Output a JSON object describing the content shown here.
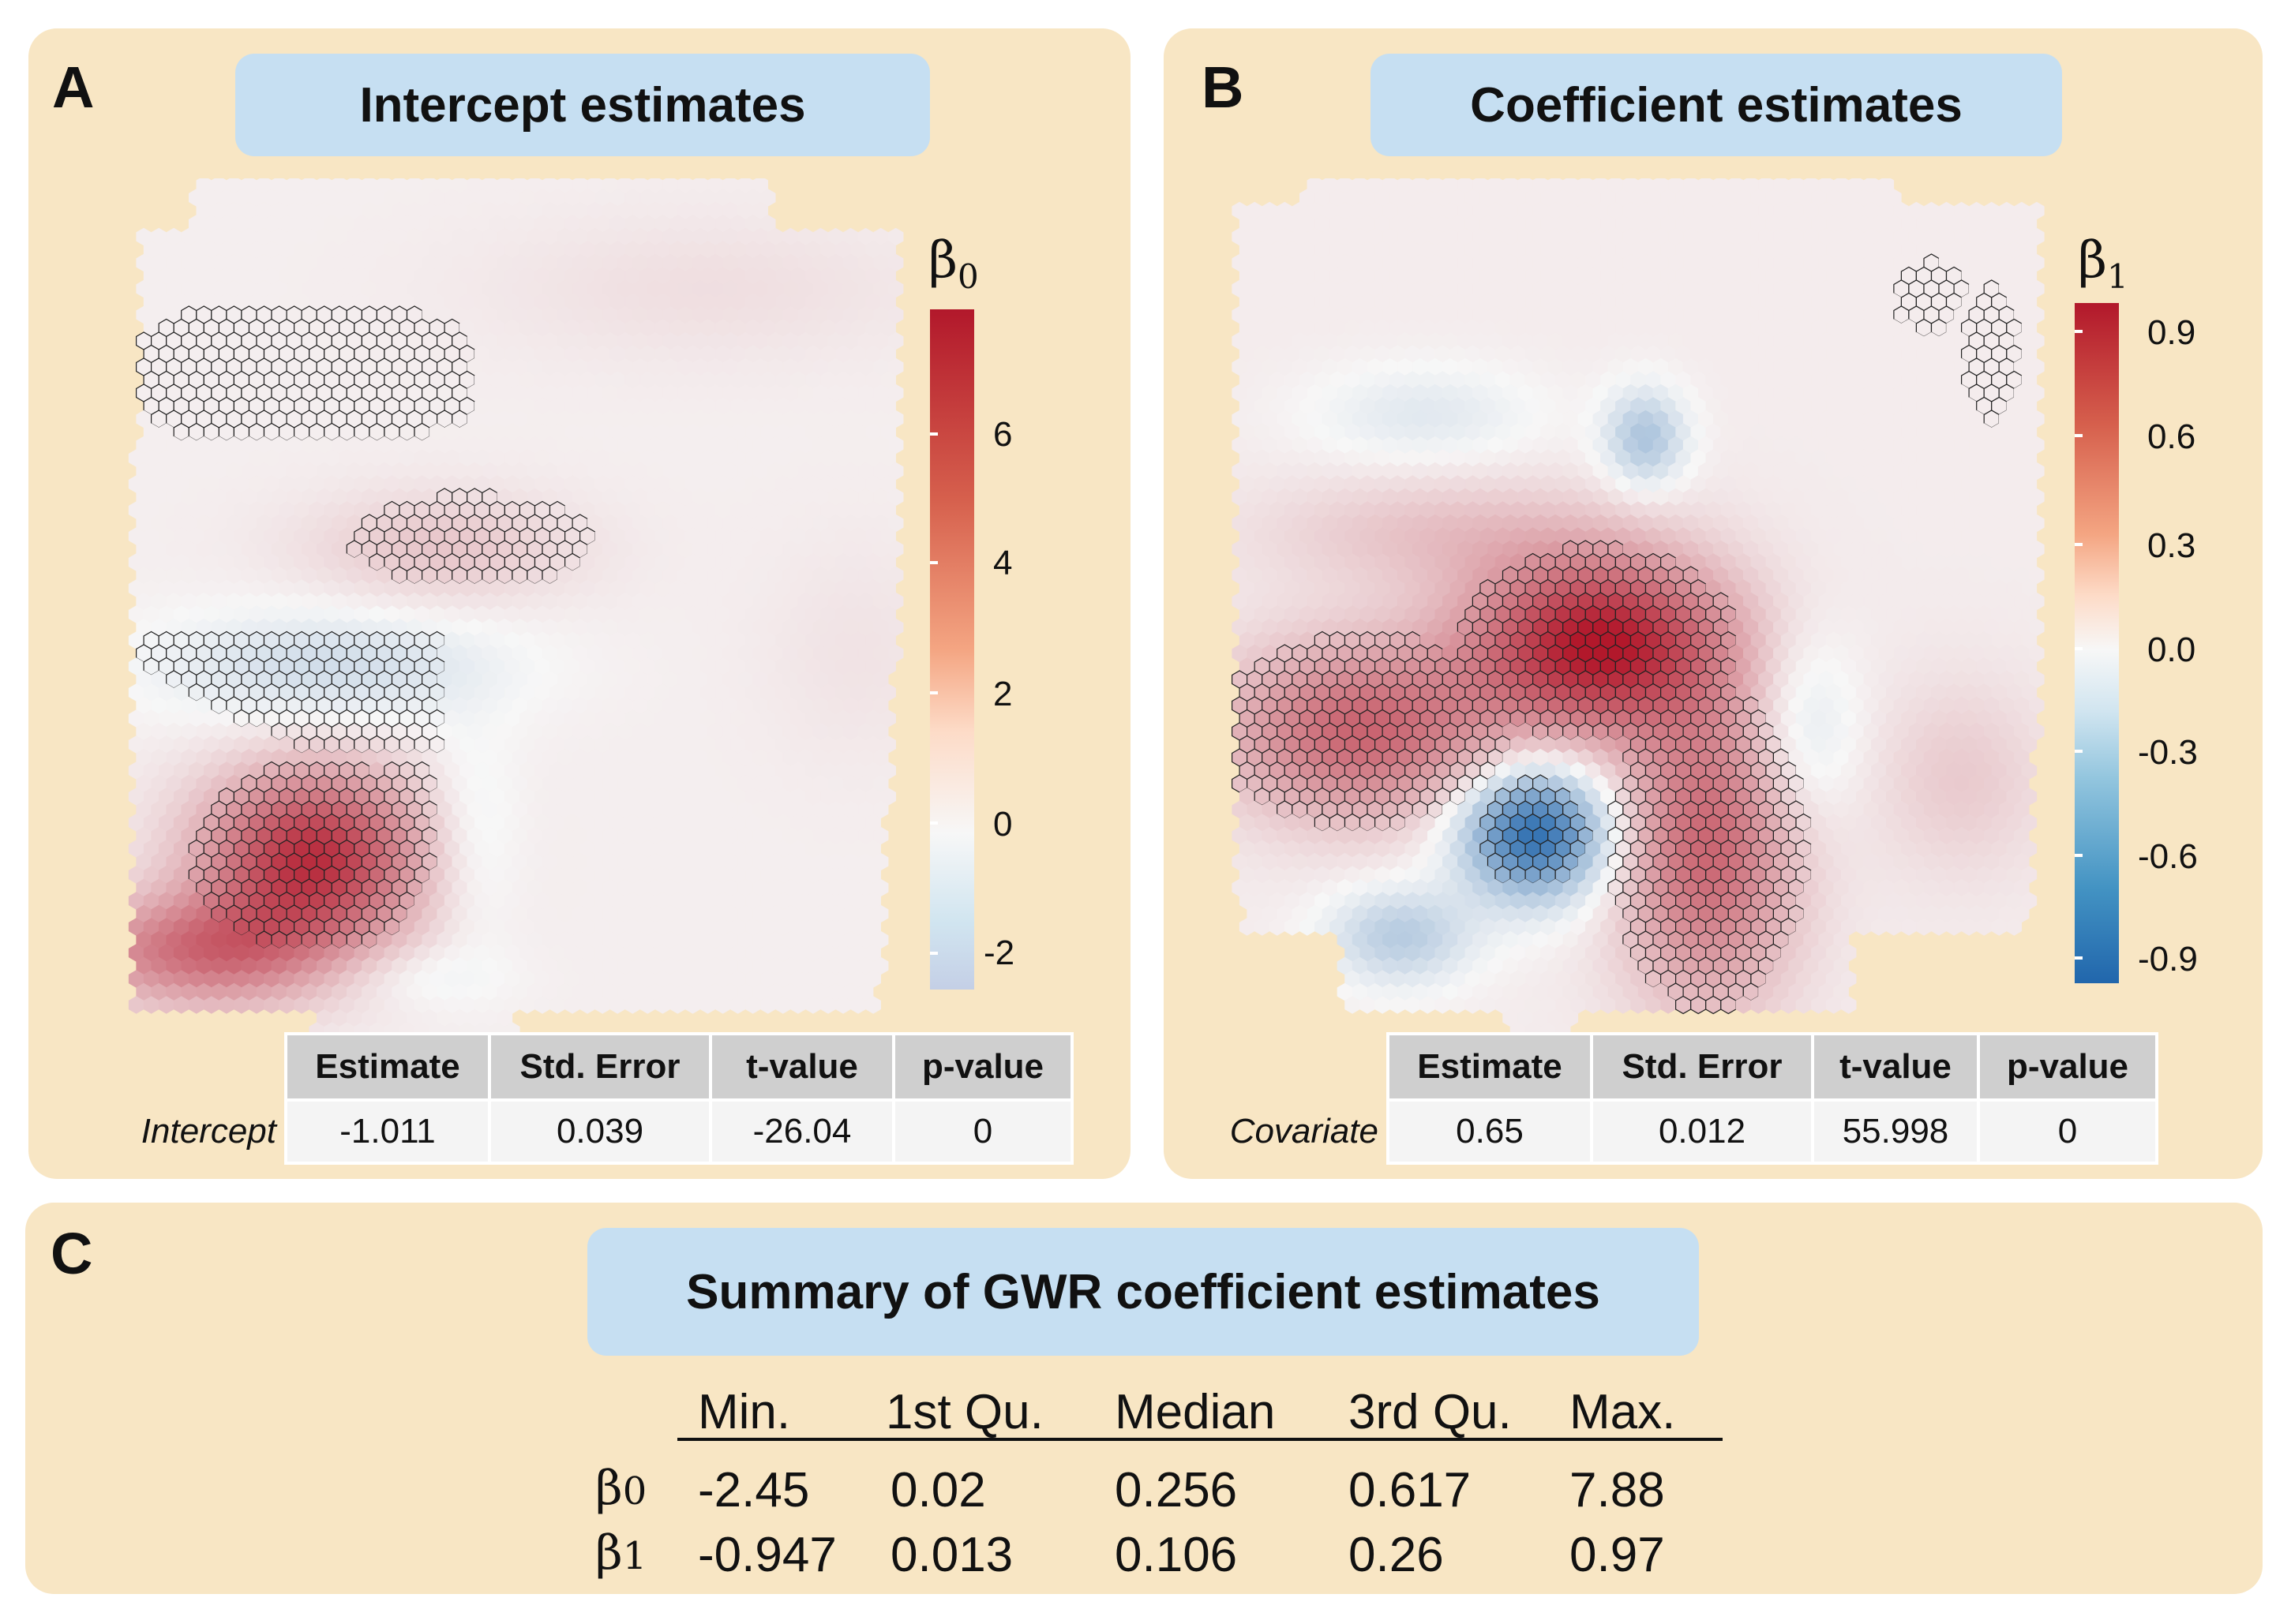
{
  "panel_a": {
    "label": "A",
    "title": "Intercept estimates",
    "legend_symbol": "β",
    "legend_subscript": "0",
    "colorbar_ticks": [
      "6",
      "4",
      "2",
      "0",
      "-2"
    ],
    "table": {
      "headers": [
        "Estimate",
        "Std. Error",
        "t-value",
        "p-value"
      ],
      "row_label": "Intercept",
      "values": [
        "-1.011",
        "0.039",
        "-26.04",
        "0"
      ]
    }
  },
  "panel_b": {
    "label": "B",
    "title": "Coefficient estimates",
    "legend_symbol": "β",
    "legend_subscript": "1",
    "colorbar_ticks": [
      "0.9",
      "0.6",
      "0.3",
      "0.0",
      "-0.3",
      "-0.6",
      "-0.9"
    ],
    "table": {
      "headers": [
        "Estimate",
        "Std. Error",
        "t-value",
        "p-value"
      ],
      "row_label": "Covariate",
      "values": [
        "0.65",
        "0.012",
        "55.998",
        "0"
      ]
    }
  },
  "panel_c": {
    "label": "C",
    "title": "Summary of GWR coefficient estimates",
    "columns": [
      "Min.",
      "1st Qu.",
      "Median",
      "3rd Qu.",
      "Max."
    ],
    "rows": [
      {
        "symbol": "β",
        "subscript": "0",
        "values": [
          "-2.45",
          "0.02",
          "0.256",
          "0.617",
          "7.88"
        ]
      },
      {
        "symbol": "β",
        "subscript": "1",
        "values": [
          "-0.947",
          "0.013",
          "0.106",
          "0.26",
          "0.97"
        ]
      }
    ]
  },
  "colors": {
    "panel_bg": "#f8e6c4",
    "pill_bg": "#c6dff2",
    "high": "#b2182b",
    "mid": "#f7f7f7",
    "low": "#2166ac"
  }
}
